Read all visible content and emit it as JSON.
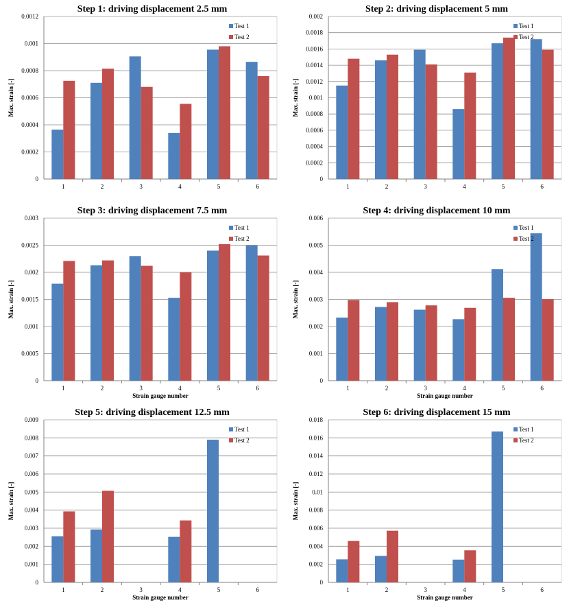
{
  "colors": {
    "test1": "#4F81BD",
    "test2": "#C0504D",
    "grid": "#8c8c8c",
    "axis": "#808080"
  },
  "chart_data": [
    {
      "type": "bar",
      "title": "Step 1: driving displacement 2.5 mm",
      "xlabel": "",
      "ylabel": "Max. strain [-]",
      "categories": [
        "1",
        "2",
        "3",
        "4",
        "5",
        "6"
      ],
      "ylim": [
        0,
        0.0012
      ],
      "yticks": [
        "0",
        "0.0002",
        "0.0004",
        "0.0006",
        "0.0008",
        "0.001",
        "0.0012"
      ],
      "series": [
        {
          "name": "Test 1",
          "values": [
            0.000365,
            0.00071,
            0.000905,
            0.00034,
            0.000955,
            0.000865
          ]
        },
        {
          "name": "Test 2",
          "values": [
            0.000725,
            0.000815,
            0.00068,
            0.000555,
            0.00098,
            0.00076
          ]
        }
      ]
    },
    {
      "type": "bar",
      "title": "Step 2: driving displacement 5 mm",
      "xlabel": "",
      "ylabel": "Max. strain [-]",
      "categories": [
        "1",
        "2",
        "3",
        "4",
        "5",
        "6"
      ],
      "ylim": [
        0,
        0.002
      ],
      "yticks": [
        "0",
        "0.0002",
        "0.0004",
        "0.0006",
        "0.0008",
        "0.001",
        "0.0012",
        "0.0014",
        "0.0016",
        "0.0018",
        "0.002"
      ],
      "series": [
        {
          "name": "Test 1",
          "values": [
            0.00115,
            0.00146,
            0.00159,
            0.00086,
            0.00167,
            0.00172
          ]
        },
        {
          "name": "Test 2",
          "values": [
            0.00148,
            0.00153,
            0.00141,
            0.00131,
            0.00174,
            0.00159
          ]
        }
      ]
    },
    {
      "type": "bar",
      "title": "Step 3: driving displacement 7.5 mm",
      "xlabel": "Strain gauge number",
      "ylabel": "Max. strain [-]",
      "categories": [
        "1",
        "2",
        "3",
        "4",
        "5",
        "6"
      ],
      "ylim": [
        0,
        0.003
      ],
      "yticks": [
        "0",
        "0.0005",
        "0.001",
        "0.0015",
        "0.002",
        "0.0025",
        "0.003"
      ],
      "series": [
        {
          "name": "Test 1",
          "values": [
            0.00179,
            0.00213,
            0.0023,
            0.00153,
            0.0024,
            0.0025
          ]
        },
        {
          "name": "Test 2",
          "values": [
            0.00221,
            0.00222,
            0.00212,
            0.002,
            0.00252,
            0.00231
          ]
        }
      ]
    },
    {
      "type": "bar",
      "title": "Step 4: driving displacement 10 mm",
      "xlabel": "Strain gauge number",
      "ylabel": "Max. strain [-]",
      "categories": [
        "1",
        "2",
        "3",
        "4",
        "5",
        "6"
      ],
      "ylim": [
        0,
        0.006
      ],
      "yticks": [
        "0",
        "0.001",
        "0.002",
        "0.003",
        "0.004",
        "0.005",
        "0.006"
      ],
      "series": [
        {
          "name": "Test 1",
          "values": [
            0.00233,
            0.00272,
            0.00262,
            0.00227,
            0.00412,
            0.00544
          ]
        },
        {
          "name": "Test 2",
          "values": [
            0.00298,
            0.0029,
            0.00278,
            0.00269,
            0.00306,
            0.00301
          ]
        }
      ]
    },
    {
      "type": "bar",
      "title": "Step 5: driving displacement 12.5 mm",
      "xlabel": "Strain gauge number",
      "ylabel": "Max. strain [-]",
      "categories": [
        "1",
        "2",
        "3",
        "4",
        "5",
        "6"
      ],
      "ylim": [
        0,
        0.009
      ],
      "yticks": [
        "0",
        "0.001",
        "0.002",
        "0.003",
        "0.004",
        "0.005",
        "0.006",
        "0.007",
        "0.008",
        "0.009"
      ],
      "series": [
        {
          "name": "Test 1",
          "values": [
            0.00255,
            0.00293,
            0,
            0.00252,
            0.0079,
            0
          ]
        },
        {
          "name": "Test 2",
          "values": [
            0.00393,
            0.00507,
            0,
            0.00343,
            0,
            0
          ]
        }
      ]
    },
    {
      "type": "bar",
      "title": "Step 6: driving displacement 15 mm",
      "xlabel": "Strain gauge number",
      "ylabel": "Max. strain [-]",
      "categories": [
        "1",
        "2",
        "3",
        "4",
        "5",
        "6"
      ],
      "ylim": [
        0,
        0.018
      ],
      "yticks": [
        "0",
        "0.002",
        "0.004",
        "0.006",
        "0.008",
        "0.01",
        "0.012",
        "0.014",
        "0.016",
        "0.018"
      ],
      "series": [
        {
          "name": "Test 1",
          "values": [
            0.00255,
            0.00293,
            0,
            0.00252,
            0.0167,
            0
          ]
        },
        {
          "name": "Test 2",
          "values": [
            0.00458,
            0.00572,
            0,
            0.00355,
            0,
            0
          ]
        }
      ]
    }
  ]
}
